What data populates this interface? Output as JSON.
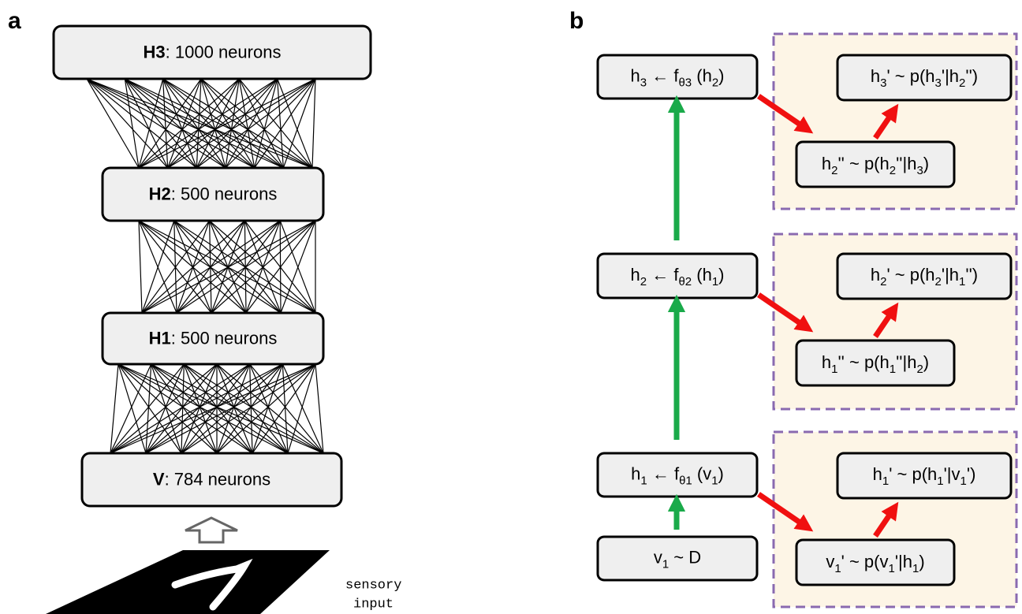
{
  "panel_a": {
    "label": "a",
    "layers": [
      {
        "bold": "H3",
        "text": ": 1000 neurons"
      },
      {
        "bold": "H2",
        "text": ": 500 neurons"
      },
      {
        "bold": "H1",
        "text": ": 500 neurons"
      },
      {
        "bold": "V",
        "text": ": 784 neurons"
      }
    ],
    "input_label": [
      "sensory",
      "input"
    ]
  },
  "panel_b": {
    "label": "b",
    "left": [
      [
        "h",
        "3",
        " ← f",
        "θ3",
        " (h",
        "2",
        ")"
      ],
      [
        "h",
        "2",
        " ← f",
        "θ2",
        " (h",
        "1",
        ")"
      ],
      [
        "h",
        "1",
        " ← f",
        "θ1",
        " (v",
        "1",
        ")"
      ],
      [
        "v",
        "1",
        " ~ D"
      ]
    ],
    "groups": [
      {
        "top": [
          "h",
          "3",
          "' ~ p(h",
          "3",
          "'|h",
          "2",
          "'')"
        ],
        "bottom": [
          "h",
          "2",
          "'' ~ p(h",
          "2",
          "''|h",
          "3",
          ")"
        ]
      },
      {
        "top": [
          "h",
          "2",
          "' ~ p(h",
          "2",
          "'|h",
          "1",
          "'')"
        ],
        "bottom": [
          "h",
          "1",
          "'' ~ p(h",
          "1",
          "''|h",
          "2",
          ")"
        ]
      },
      {
        "top": [
          "h",
          "1",
          "' ~ p(h",
          "1",
          "'|v",
          "1",
          "')"
        ],
        "bottom": [
          "v",
          "1",
          "' ~ p(v",
          "1",
          "'|h",
          "1",
          ")"
        ]
      }
    ]
  }
}
